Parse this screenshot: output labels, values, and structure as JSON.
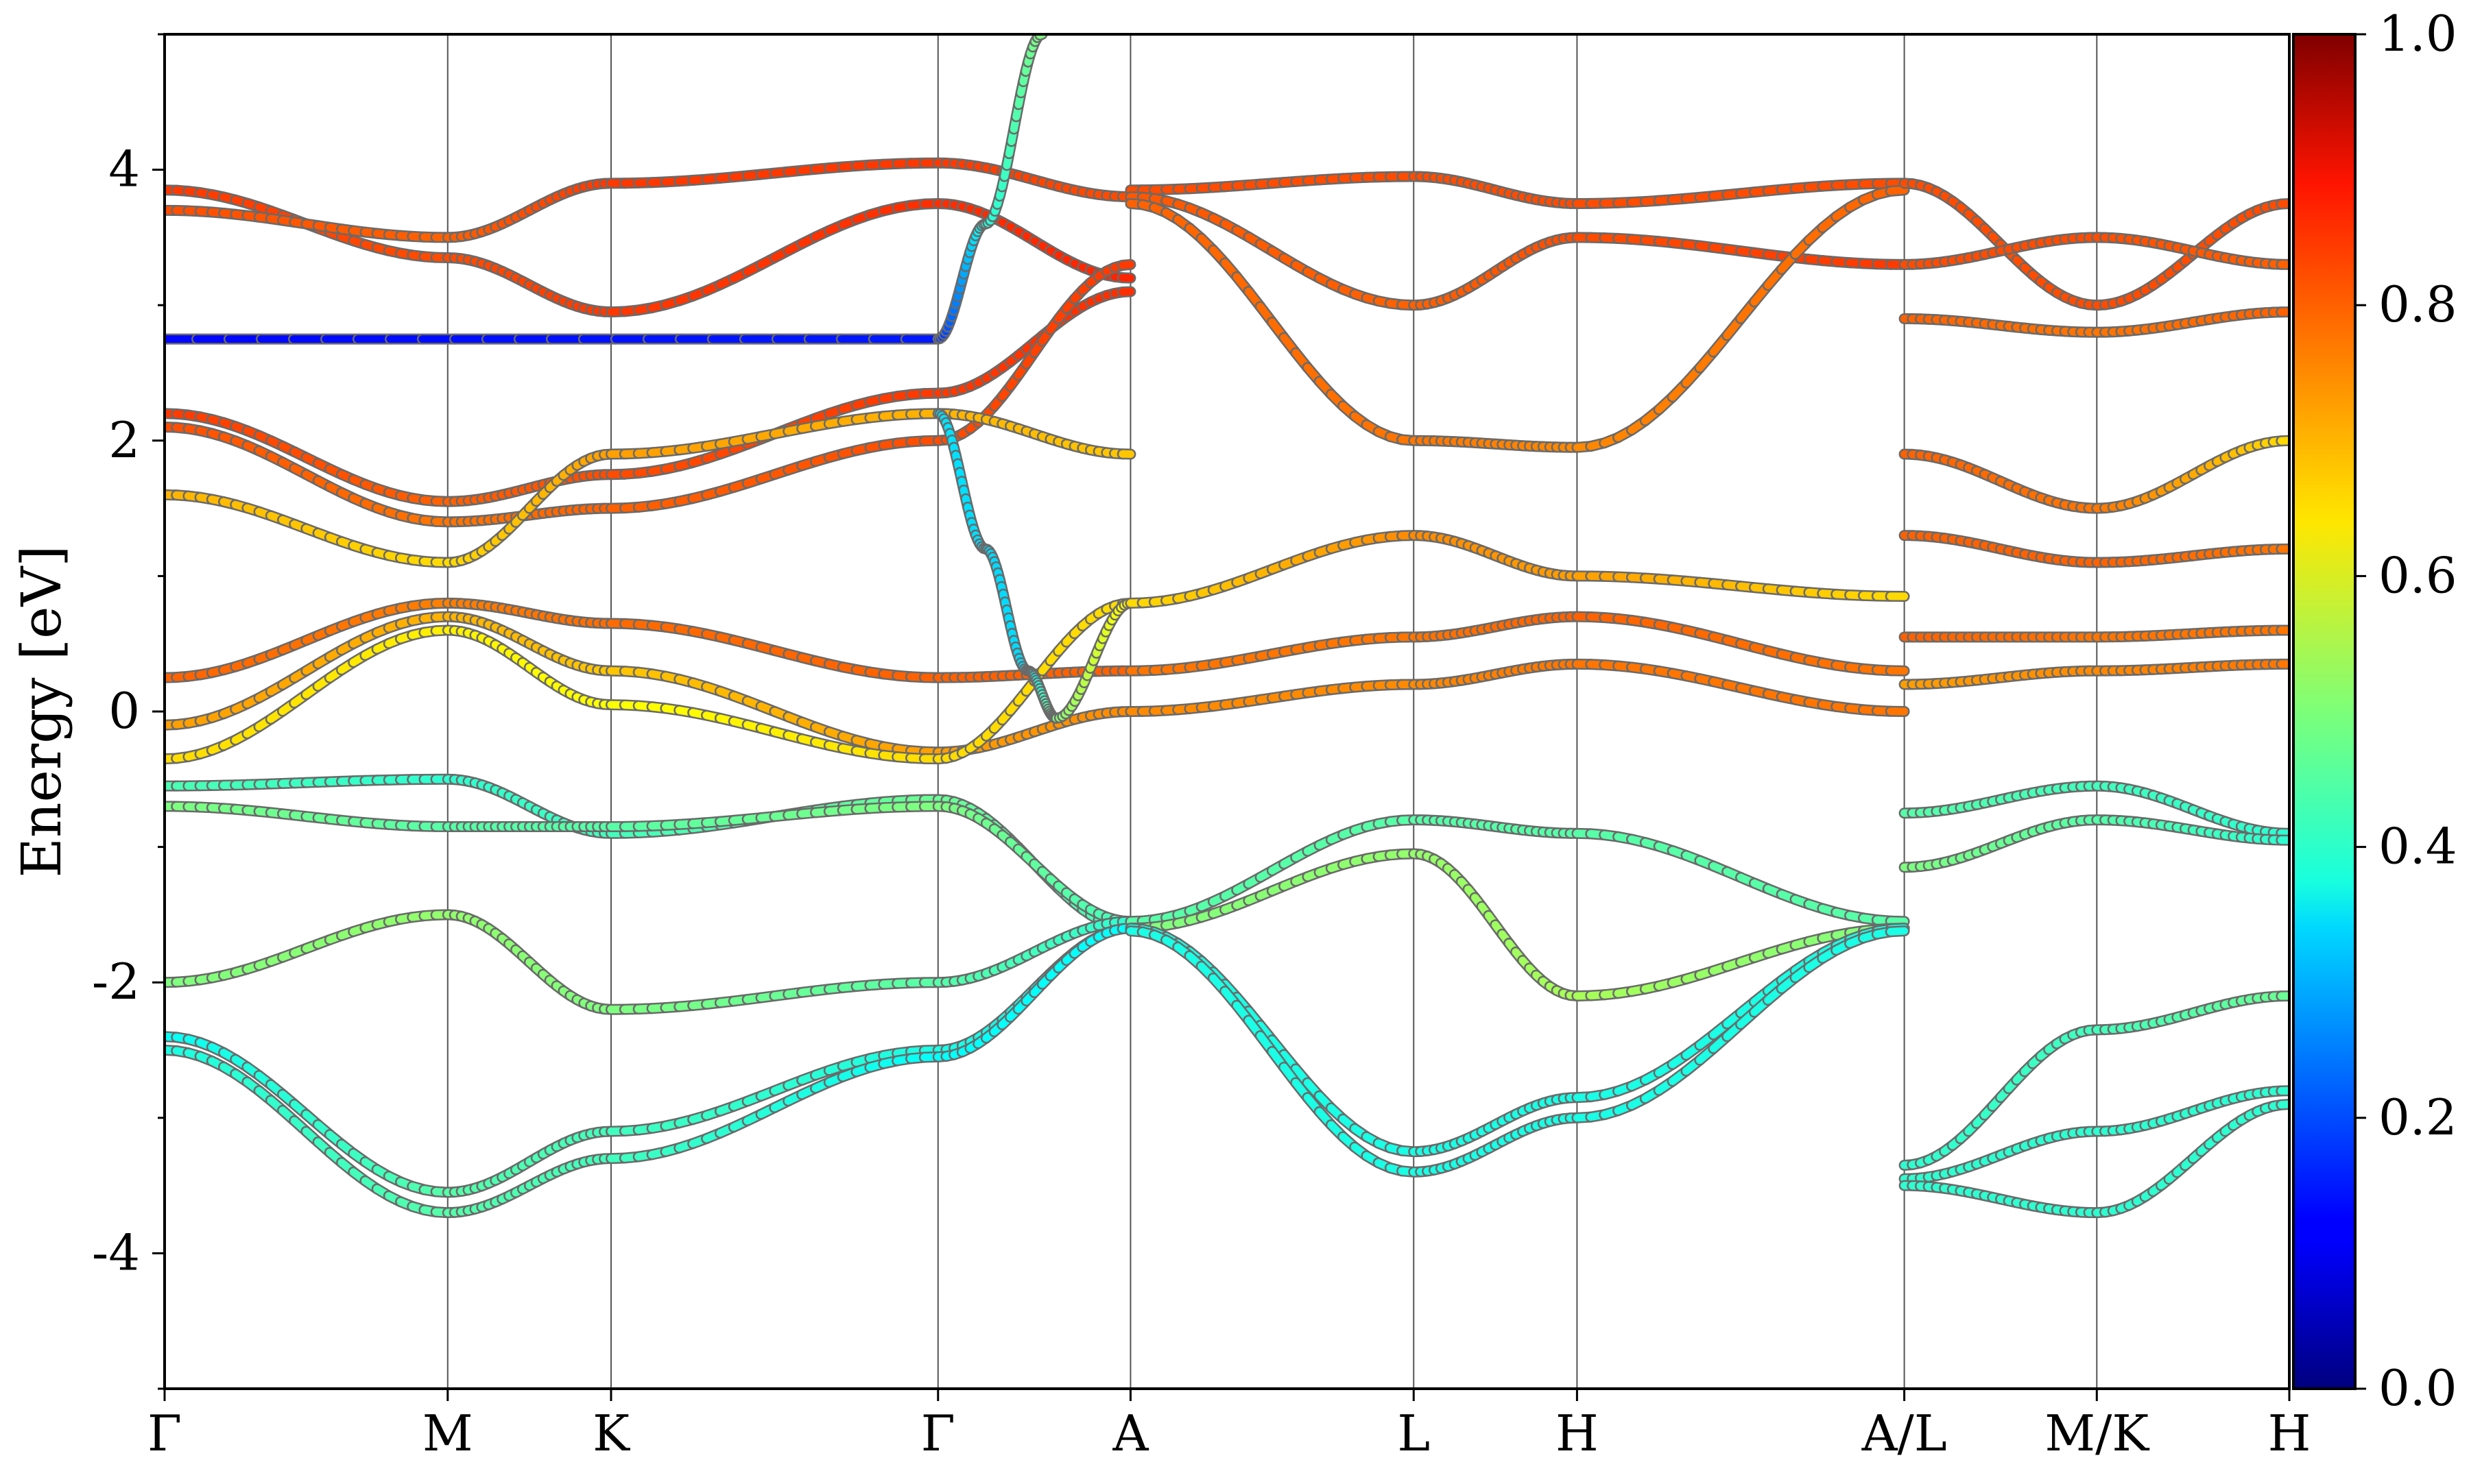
{
  "chart_data": {
    "type": "line",
    "title": "",
    "xlabel": "",
    "ylabel": "Energy [eV]",
    "ylim": [
      -5,
      5
    ],
    "y_ticks": [
      -4,
      -2,
      0,
      2,
      4
    ],
    "x_ticks": [
      {
        "label": "Γ",
        "pos": 0.0
      },
      {
        "label": "M",
        "pos": 1.0
      },
      {
        "label": "K",
        "pos": 1.577
      },
      {
        "label": "Γ",
        "pos": 2.732
      },
      {
        "label": "A",
        "pos": 3.412
      },
      {
        "label": "L",
        "pos": 4.412
      },
      {
        "label": "H",
        "pos": 4.989
      },
      {
        "label": "A/L",
        "pos": 6.145
      },
      {
        "label": "M/K",
        "pos": 6.825
      },
      {
        "label": "H",
        "pos": 7.505
      }
    ],
    "colorbar": {
      "colormap": "jet",
      "range": [
        0.0,
        1.0
      ],
      "ticks": [
        "0.0",
        "0.2",
        "0.4",
        "0.6",
        "0.8",
        "1.0"
      ]
    },
    "grid": "vertical lines at high-symmetry points",
    "series": [
      {
        "x": [
          0.0,
          1.0,
          1.577,
          2.732,
          3.412
        ],
        "y": [
          3.85,
          3.35,
          2.95,
          3.75,
          3.2
        ],
        "w": [
          0.82,
          0.8,
          0.82,
          0.83,
          0.84
        ]
      },
      {
        "x": [
          0.0,
          1.0,
          1.577,
          2.732,
          3.412
        ],
        "y": [
          3.7,
          3.5,
          3.9,
          4.05,
          3.8
        ],
        "w": [
          0.8,
          0.78,
          0.82,
          0.82,
          0.8
        ]
      },
      {
        "x": [
          0.0,
          1.0,
          1.577,
          2.732,
          3.412
        ],
        "y": [
          2.2,
          1.55,
          1.75,
          2.35,
          3.1
        ],
        "w": [
          0.82,
          0.78,
          0.8,
          0.82,
          0.83
        ]
      },
      {
        "x": [
          0.0,
          1.0,
          1.577,
          2.732,
          3.412
        ],
        "y": [
          2.1,
          1.4,
          1.5,
          2.0,
          3.3
        ],
        "w": [
          0.8,
          0.76,
          0.78,
          0.8,
          0.82
        ]
      },
      {
        "x": [
          0.0,
          1.0,
          1.577,
          2.732,
          3.412
        ],
        "y": [
          1.6,
          1.1,
          1.9,
          2.2,
          1.9
        ],
        "w": [
          0.7,
          0.66,
          0.72,
          0.7,
          0.68
        ]
      },
      {
        "x": [
          0.0,
          2.732,
          2.9,
          3.1
        ],
        "y": [
          2.75,
          2.75,
          3.6,
          5.0
        ],
        "w": [
          0.13,
          0.15,
          0.4,
          0.5
        ]
      },
      {
        "x": [
          0.0,
          1.0,
          1.577,
          2.732,
          3.412
        ],
        "y": [
          0.25,
          0.8,
          0.65,
          0.25,
          0.3
        ],
        "w": [
          0.78,
          0.75,
          0.77,
          0.78,
          0.78
        ]
      },
      {
        "x": [
          0.0,
          1.0,
          1.577,
          2.732,
          3.412
        ],
        "y": [
          -0.1,
          0.7,
          0.3,
          -0.3,
          0.0
        ],
        "w": [
          0.72,
          0.7,
          0.68,
          0.72,
          0.74
        ]
      },
      {
        "x": [
          0.0,
          1.0,
          1.577,
          2.732,
          3.412
        ],
        "y": [
          -0.35,
          0.6,
          0.05,
          -0.35,
          0.8
        ],
        "w": [
          0.66,
          0.64,
          0.62,
          0.66,
          0.66
        ]
      },
      {
        "x": [
          0.0,
          1.0,
          1.577,
          2.732,
          3.412
        ],
        "y": [
          -0.55,
          -0.5,
          -0.9,
          -0.65,
          -1.6
        ],
        "w": [
          0.45,
          0.42,
          0.44,
          0.48,
          0.44
        ]
      },
      {
        "x": [
          0.0,
          1.0,
          1.577,
          2.732,
          3.412
        ],
        "y": [
          -0.7,
          -0.85,
          -0.85,
          -0.7,
          -1.55
        ],
        "w": [
          0.5,
          0.46,
          0.46,
          0.5,
          0.44
        ]
      },
      {
        "x": [
          0.0,
          1.0,
          1.577,
          2.732,
          3.412
        ],
        "y": [
          -2.0,
          -1.5,
          -2.2,
          -2.0,
          -1.55
        ],
        "w": [
          0.5,
          0.52,
          0.5,
          0.46,
          0.42
        ]
      },
      {
        "x": [
          0.0,
          1.0,
          1.577,
          2.732,
          3.412
        ],
        "y": [
          -2.4,
          -3.55,
          -3.1,
          -2.5,
          -1.6
        ],
        "w": [
          0.38,
          0.46,
          0.44,
          0.4,
          0.38
        ]
      },
      {
        "x": [
          0.0,
          1.0,
          1.577,
          2.732,
          3.412
        ],
        "y": [
          -2.5,
          -3.7,
          -3.3,
          -2.55,
          -1.6
        ],
        "w": [
          0.4,
          0.46,
          0.44,
          0.38,
          0.38
        ]
      },
      {
        "x": [
          2.732,
          2.9,
          3.05,
          3.15,
          3.412
        ],
        "y": [
          2.2,
          1.2,
          0.3,
          -0.05,
          0.8
        ],
        "w": [
          0.35,
          0.34,
          0.34,
          0.5,
          0.64
        ]
      },
      {
        "x": [
          3.412,
          4.412,
          4.989,
          6.145
        ],
        "y": [
          3.85,
          3.95,
          3.75,
          3.9
        ],
        "w": [
          0.8,
          0.8,
          0.8,
          0.8
        ]
      },
      {
        "x": [
          3.412,
          4.412,
          4.989,
          6.145
        ],
        "y": [
          3.8,
          3.0,
          3.5,
          3.3
        ],
        "w": [
          0.79,
          0.78,
          0.8,
          0.82
        ]
      },
      {
        "x": [
          3.412,
          4.412,
          4.989,
          6.145
        ],
        "y": [
          3.75,
          2.0,
          1.95,
          3.85
        ],
        "w": [
          0.78,
          0.76,
          0.74,
          0.78
        ]
      },
      {
        "x": [
          3.412,
          4.412,
          4.989,
          6.145
        ],
        "y": [
          0.8,
          1.3,
          1.0,
          0.85
        ],
        "w": [
          0.66,
          0.74,
          0.72,
          0.66
        ]
      },
      {
        "x": [
          3.412,
          4.412,
          4.989,
          6.145
        ],
        "y": [
          0.3,
          0.55,
          0.7,
          0.3
        ],
        "w": [
          0.76,
          0.76,
          0.78,
          0.76
        ]
      },
      {
        "x": [
          3.412,
          4.412,
          4.989,
          6.145
        ],
        "y": [
          0.0,
          0.2,
          0.35,
          0.0
        ],
        "w": [
          0.74,
          0.74,
          0.76,
          0.76
        ]
      },
      {
        "x": [
          3.412,
          4.412,
          4.989,
          6.145
        ],
        "y": [
          -1.55,
          -0.8,
          -0.9,
          -1.55
        ],
        "w": [
          0.46,
          0.46,
          0.46,
          0.46
        ]
      },
      {
        "x": [
          3.412,
          4.412,
          4.989,
          6.145
        ],
        "y": [
          -1.6,
          -1.05,
          -2.1,
          -1.6
        ],
        "w": [
          0.5,
          0.52,
          0.54,
          0.5
        ]
      },
      {
        "x": [
          3.412,
          4.412,
          4.989,
          6.145
        ],
        "y": [
          -1.6,
          -3.25,
          -2.85,
          -1.6
        ],
        "w": [
          0.4,
          0.4,
          0.4,
          0.4
        ]
      },
      {
        "x": [
          3.412,
          4.412,
          4.989,
          6.145
        ],
        "y": [
          -1.62,
          -3.4,
          -3.0,
          -1.62
        ],
        "w": [
          0.4,
          0.4,
          0.4,
          0.4
        ]
      },
      {
        "x": [
          6.145,
          6.825,
          7.505
        ],
        "y": [
          3.9,
          3.0,
          3.75
        ],
        "w": [
          0.8,
          0.8,
          0.8
        ]
      },
      {
        "x": [
          6.145,
          6.825,
          7.505
        ],
        "y": [
          3.3,
          3.5,
          3.3
        ],
        "w": [
          0.8,
          0.8,
          0.78
        ]
      },
      {
        "x": [
          6.145,
          6.825,
          7.505
        ],
        "y": [
          2.9,
          2.8,
          2.95
        ],
        "w": [
          0.78,
          0.76,
          0.78
        ]
      },
      {
        "x": [
          6.145,
          6.825,
          7.505
        ],
        "y": [
          1.9,
          1.5,
          2.0
        ],
        "w": [
          0.78,
          0.76,
          0.66
        ]
      },
      {
        "x": [
          6.145,
          6.825,
          7.505
        ],
        "y": [
          1.3,
          1.1,
          1.2
        ],
        "w": [
          0.78,
          0.78,
          0.76
        ]
      },
      {
        "x": [
          6.145,
          6.825,
          7.505
        ],
        "y": [
          0.55,
          0.55,
          0.6
        ],
        "w": [
          0.78,
          0.76,
          0.76
        ]
      },
      {
        "x": [
          6.145,
          6.825,
          7.505
        ],
        "y": [
          0.2,
          0.3,
          0.35
        ],
        "w": [
          0.72,
          0.74,
          0.76
        ]
      },
      {
        "x": [
          6.145,
          6.825,
          7.505
        ],
        "y": [
          -0.75,
          -0.55,
          -0.9
        ],
        "w": [
          0.46,
          0.44,
          0.42
        ]
      },
      {
        "x": [
          6.145,
          6.825,
          7.505
        ],
        "y": [
          -1.15,
          -0.8,
          -0.95
        ],
        "w": [
          0.5,
          0.46,
          0.42
        ]
      },
      {
        "x": [
          6.145,
          6.825,
          7.505
        ],
        "y": [
          -3.35,
          -2.35,
          -2.1
        ],
        "w": [
          0.42,
          0.44,
          0.48
        ]
      },
      {
        "x": [
          6.145,
          6.825,
          7.505
        ],
        "y": [
          -3.45,
          -3.1,
          -2.8
        ],
        "w": [
          0.42,
          0.42,
          0.42
        ]
      },
      {
        "x": [
          6.145,
          6.825,
          7.505
        ],
        "y": [
          -3.5,
          -3.7,
          -2.9
        ],
        "w": [
          0.42,
          0.42,
          0.42
        ]
      }
    ]
  }
}
